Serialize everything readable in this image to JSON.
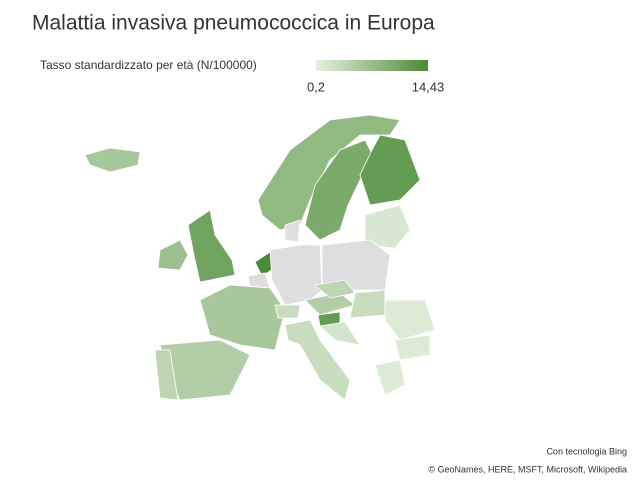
{
  "chart_data": {
    "type": "choropleth",
    "title": "Malattia invasiva pneumococcica in Europa",
    "legend_title": "Tasso standardizzato per età (N/100000)",
    "clim": [
      0.2,
      14.43
    ],
    "cticks": [
      {
        "value": 0.2,
        "label": "0,2"
      },
      {
        "value": 14.43,
        "label": "14,43"
      }
    ],
    "color_low": "#e6f1df",
    "color_high": "#4b8a36",
    "null_color": "#dedede",
    "values": [
      6,
      8,
      10,
      12,
      1.5,
      7,
      11,
      14.43,
      null,
      null,
      null,
      null,
      6,
      5,
      4,
      3,
      5,
      4,
      3,
      12,
      2,
      1,
      1,
      1,
      3
    ],
    "attribution": [
      "Con tecnologia Bing",
      "© GeoNames, HERE, MSFT, Microsoft, Wikipedia"
    ]
  }
}
